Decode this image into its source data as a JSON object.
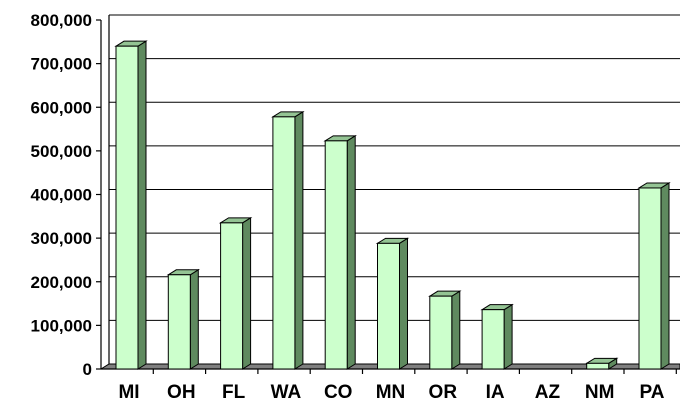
{
  "chart_data": {
    "type": "bar",
    "categories": [
      "MI",
      "OH",
      "FL",
      "WA",
      "CO",
      "MN",
      "OR",
      "IA",
      "AZ",
      "NM",
      "PA"
    ],
    "values": [
      740000,
      216000,
      335000,
      578000,
      523000,
      288000,
      167000,
      136000,
      0,
      13000,
      415000
    ],
    "title": "",
    "xlabel": "",
    "ylabel": "",
    "ylim": [
      0,
      800000
    ],
    "yticks": [
      "0",
      "100,000",
      "200,000",
      "300,000",
      "400,000",
      "500,000",
      "600,000",
      "700,000",
      "800,000"
    ],
    "grid": true,
    "legend": "none",
    "colors": {
      "bar_front": "#ccffcc",
      "bar_side": "#5f8a5f",
      "bar_top": "#94c494",
      "bar_edge": "#000000",
      "floor": "#7f7f7f",
      "gridline": "#000000"
    }
  }
}
